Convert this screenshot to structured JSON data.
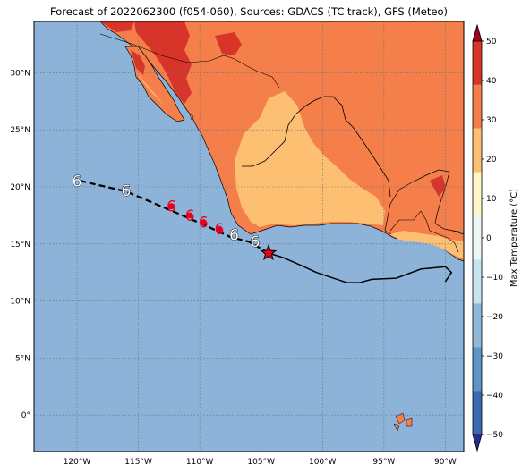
{
  "title": "Forecast of 2022062300 (f054-060), Sources: GDACS (TC track), GFS (Meteo)",
  "colors": {
    "ocean": "#8db3d9",
    "land_10_20": "#fdbf72",
    "land_20_30": "#f47f4a",
    "land_30_40": "#d8352a",
    "track_past": "#000000",
    "track_forecast": "#000000",
    "storm_hurricane": "#e8001c",
    "storm_other": "#ffffff",
    "current_position": "#e8001c"
  },
  "axes": {
    "lon_ticks": [
      "120°W",
      "115°W",
      "110°W",
      "105°W",
      "100°W",
      "95°W",
      "90°W"
    ],
    "lat_ticks": [
      "30°N",
      "25°N",
      "20°N",
      "15°N",
      "10°N",
      "5°N",
      "0°"
    ],
    "lon_range": [
      -123.5,
      -88.5
    ],
    "lat_range": [
      -3.2,
      34.5
    ],
    "grid": true
  },
  "colorbar": {
    "label": "Max Temperature (°C)",
    "ticks": [
      "50",
      "40",
      "30",
      "20",
      "10",
      "0",
      "−10",
      "−20",
      "−30",
      "−40",
      "−50"
    ],
    "range": [
      -50,
      50
    ],
    "colors": [
      "#282b8e",
      "#3b6ab0",
      "#5d95c5",
      "#8db8da",
      "#c7e3ef",
      "#ebf6f6",
      "#fff8c6",
      "#fdbf72",
      "#f47f4a",
      "#d8352a",
      "#a50026"
    ]
  },
  "track": {
    "past": [
      [
        -100.5,
        12.5
      ],
      [
        -98,
        11.6
      ],
      [
        -97,
        11.6
      ],
      [
        -96,
        11.9
      ],
      [
        -94,
        12.0
      ],
      [
        -92,
        12.8
      ],
      [
        -90,
        13.0
      ],
      [
        -89.5,
        12.5
      ],
      [
        -90.0,
        11.7
      ]
    ],
    "coast_leg": [
      [
        -104.4,
        14.2
      ],
      [
        -103.2,
        13.8
      ],
      [
        -101.5,
        13.0
      ],
      [
        -100.5,
        12.5
      ]
    ],
    "forecast": [
      [
        -104.4,
        14.2
      ],
      [
        -106,
        15.2
      ],
      [
        -107.5,
        15.6
      ],
      [
        -109.5,
        16.6
      ],
      [
        -112.5,
        18.0
      ],
      [
        -116,
        19.6
      ],
      [
        -120,
        20.6
      ]
    ],
    "current": [
      -104.4,
      14.2
    ],
    "storms": [
      {
        "lon": -105.5,
        "lat": 15.2,
        "cat": "other"
      },
      {
        "lon": -107.2,
        "lat": 15.8,
        "cat": "other"
      },
      {
        "lon": -108.4,
        "lat": 16.3,
        "cat": "hurricane"
      },
      {
        "lon": -109.7,
        "lat": 16.9,
        "cat": "hurricane"
      },
      {
        "lon": -110.8,
        "lat": 17.5,
        "cat": "hurricane"
      },
      {
        "lon": -112.3,
        "lat": 18.3,
        "cat": "hurricane"
      },
      {
        "lon": -116.0,
        "lat": 19.7,
        "cat": "other"
      },
      {
        "lon": -120.0,
        "lat": 20.5,
        "cat": "other"
      }
    ]
  }
}
